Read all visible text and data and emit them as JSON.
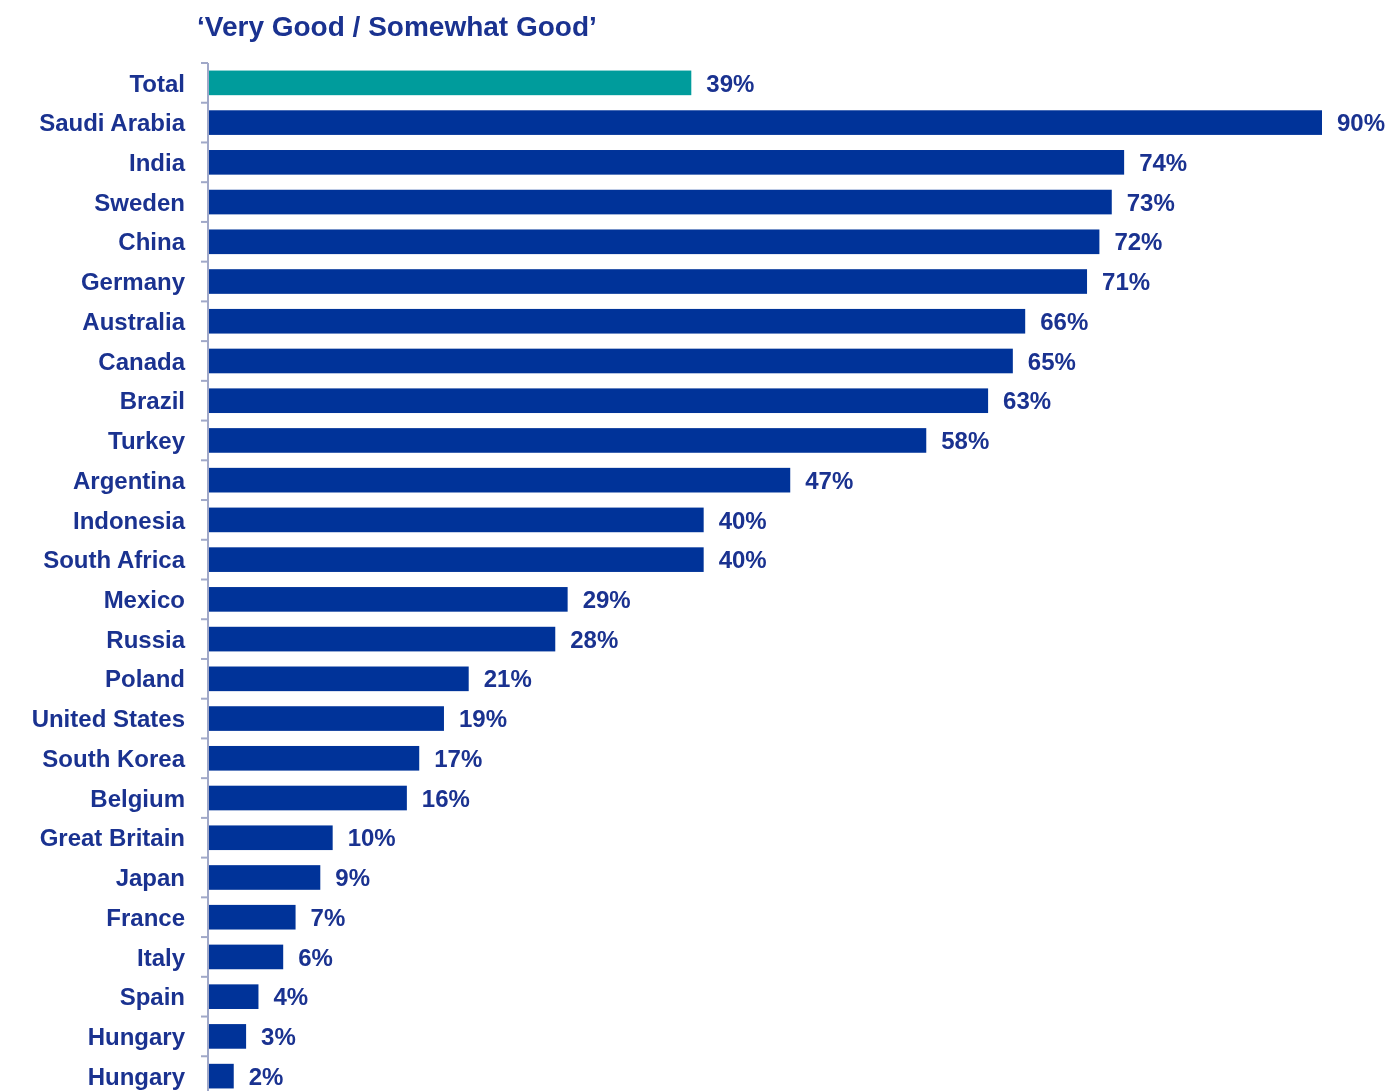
{
  "chart_data": {
    "type": "bar",
    "orientation": "horizontal",
    "title": "‘Very Good / Somewhat Good’",
    "categories": [
      "Total",
      "Saudi Arabia",
      "India",
      "Sweden",
      "China",
      "Germany",
      "Australia",
      "Canada",
      "Brazil",
      "Turkey",
      "Argentina",
      "Indonesia",
      "South Africa",
      "Mexico",
      "Russia",
      "Poland",
      "United States",
      "South Korea",
      "Belgium",
      "Great Britain",
      "Japan",
      "France",
      "Italy",
      "Spain",
      "Hungary",
      "Hungary"
    ],
    "values": [
      39,
      90,
      74,
      73,
      72,
      71,
      66,
      65,
      63,
      58,
      47,
      40,
      40,
      29,
      28,
      21,
      19,
      17,
      16,
      10,
      9,
      7,
      6,
      4,
      3,
      2
    ],
    "colors": [
      "#009c9c",
      "#003399",
      "#003399",
      "#003399",
      "#003399",
      "#003399",
      "#003399",
      "#003399",
      "#003399",
      "#003399",
      "#003399",
      "#003399",
      "#003399",
      "#003399",
      "#003399",
      "#003399",
      "#003399",
      "#003399",
      "#003399",
      "#003399",
      "#003399",
      "#003399",
      "#003399",
      "#003399",
      "#003399",
      "#003399"
    ],
    "value_labels": [
      "39%",
      "90%",
      "74%",
      "73%",
      "72%",
      "71%",
      "66%",
      "65%",
      "63%",
      "58%",
      "47%",
      "40%",
      "40%",
      "29%",
      "28%",
      "21%",
      "19%",
      "17%",
      "16%",
      "10%",
      "9%",
      "7%",
      "6%",
      "4%",
      "3%",
      "2%"
    ]
  }
}
